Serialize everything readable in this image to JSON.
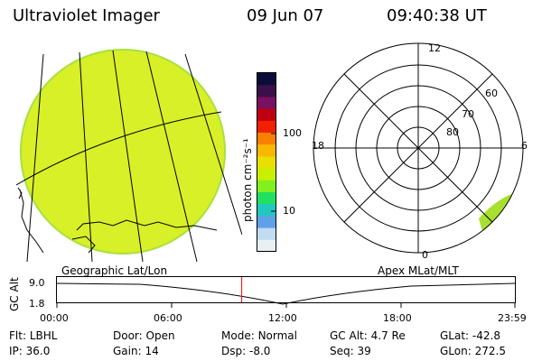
{
  "header": {
    "instrument": "Ultraviolet Imager",
    "date": "09 Jun 07",
    "time": "09:40:38 UT"
  },
  "colorbar": {
    "unit_label": "photon cm⁻²s⁻¹",
    "ticks": [
      "100",
      "10"
    ],
    "colors": [
      "#0c0c3a",
      "#3a0f4a",
      "#7a1060",
      "#c00010",
      "#f02000",
      "#f88000",
      "#f8b800",
      "#e8e000",
      "#c8f000",
      "#80f020",
      "#20e060",
      "#20c8c0",
      "#60a0e8",
      "#c0dcf0",
      "#e8f0f4"
    ]
  },
  "polar_plot": {
    "mlt_labels": {
      "top": "12",
      "left": "18",
      "right": "6",
      "bottom": "0"
    },
    "lat_labels": [
      "60",
      "70",
      "80"
    ],
    "emission_color": "#a8e030"
  },
  "geo_image": {
    "fill_color": "#d8f028",
    "rim_color": "#a8e040"
  },
  "timeline": {
    "left_caption": "Geographic Lat/Lon",
    "right_caption": "Apex MLat/MLT",
    "axis_label": "GC Alt",
    "y_ticks": [
      "9.0",
      "1.8"
    ],
    "x_ticks": [
      "00:00",
      "06:00",
      "12:00",
      "18:00",
      "23:59"
    ],
    "current_time_marker": "09:40:38",
    "marker_color": "#ff0000"
  },
  "status": {
    "row1": [
      {
        "key": "Flt:",
        "value": "LBHL"
      },
      {
        "key": "Door:",
        "value": "Open"
      },
      {
        "key": "Mode:",
        "value": "Normal"
      },
      {
        "key": "GC Alt:",
        "value": "4.7 Re"
      },
      {
        "key": "GLat:",
        "value": "-42.8"
      }
    ],
    "row2": [
      {
        "key": "IP:",
        "value": "36.0"
      },
      {
        "key": "Gain:",
        "value": "14"
      },
      {
        "key": "Dsp:",
        "value": "-8.0"
      },
      {
        "key": "Seq:",
        "value": "39"
      },
      {
        "key": "GLon:",
        "value": "272.5"
      }
    ]
  }
}
